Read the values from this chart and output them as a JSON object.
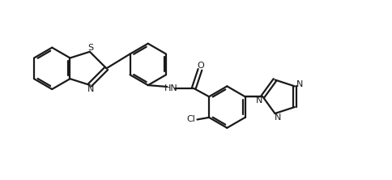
{
  "background_color": "#ffffff",
  "line_color": "#1a1a1a",
  "line_width": 1.6,
  "figsize": [
    4.84,
    2.22
  ],
  "dpi": 100,
  "labels": {
    "S": "S",
    "N_thiazole": "N",
    "HN": "HN",
    "O": "O",
    "Cl": "Cl",
    "N_trz1": "N",
    "N_trz2": "N",
    "N_trz3": "N"
  }
}
